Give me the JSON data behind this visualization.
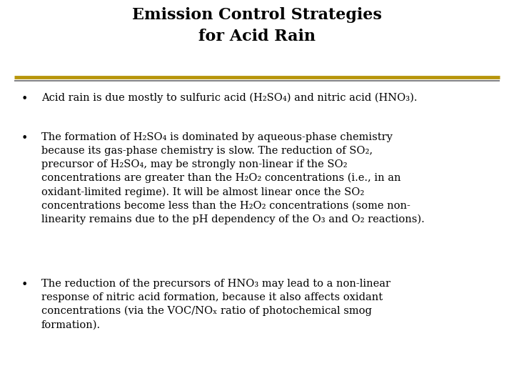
{
  "title_line1": "Emission Control Strategies",
  "title_line2": "for Acid Rain",
  "title_fontsize": 16,
  "body_fontsize": 10.5,
  "background_color": "#ffffff",
  "title_color": "#000000",
  "body_color": "#000000",
  "separator_color_gold": "#B8960C",
  "separator_color_gray": "#6B6B6B",
  "bullet1": "Acid rain is due mostly to sulfuric acid (H₂SO₄) and nitric acid (HNO₃).",
  "bullet2_lines": [
    "The formation of H₂SO₄ is dominated by aqueous-phase chemistry",
    "because its gas-phase chemistry is slow. The reduction of SO₂,",
    "precursor of H₂SO₄, may be strongly non-linear if the SO₂",
    "concentrations are greater than the H₂O₂ concentrations (i.e., in an",
    "oxidant-limited regime). It will be almost linear once the SO₂",
    "concentrations become less than the H₂O₂ concentrations (some non-",
    "linearity remains due to the pH dependency of the O₃ and O₂ reactions)."
  ],
  "bullet3_lines": [
    "The reduction of the precursors of HNO₃ may lead to a non-linear",
    "response of nitric acid formation, because it also affects oxidant",
    "concentrations (via the VOC/NOₓ ratio of photochemical smog",
    "formation)."
  ]
}
